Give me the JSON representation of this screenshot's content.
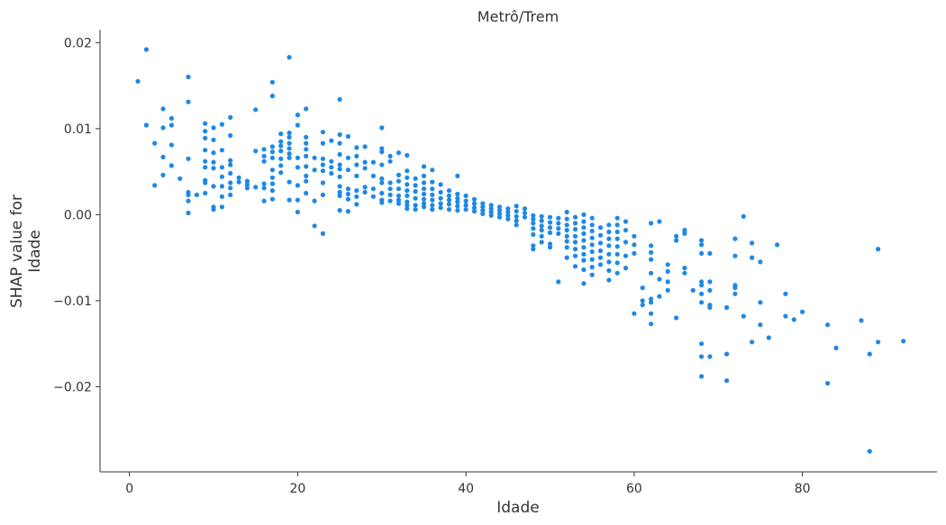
{
  "chart_data": {
    "type": "scatter",
    "title": "Metrô/Trem",
    "xlabel": "Idade",
    "ylabel": [
      "SHAP value for",
      "Idade"
    ],
    "xlim": [
      -3.5,
      96
    ],
    "ylim": [
      -0.0299,
      0.0215
    ],
    "x_ticks": [
      0,
      20,
      40,
      60,
      80
    ],
    "x_tick_labels": [
      "0",
      "20",
      "40",
      "60",
      "80"
    ],
    "y_ticks": [
      0.02,
      0.01,
      0.0,
      -0.01,
      -0.02
    ],
    "y_tick_labels": [
      "0.02",
      "0.01",
      "0.00",
      "−0.01",
      "−0.02"
    ],
    "grid": false,
    "legend": "none",
    "point_color": "#1e88e5",
    "points": [
      [
        1,
        0.0155
      ],
      [
        2,
        0.0192
      ],
      [
        2,
        0.0104
      ],
      [
        3,
        0.0083
      ],
      [
        3,
        0.0034
      ],
      [
        4,
        0.0123
      ],
      [
        4,
        0.0101
      ],
      [
        4,
        0.0067
      ],
      [
        4,
        0.0046
      ],
      [
        5,
        0.0112
      ],
      [
        5,
        0.0104
      ],
      [
        5,
        0.0081
      ],
      [
        5,
        0.0057
      ],
      [
        6,
        0.0042
      ],
      [
        7,
        0.016
      ],
      [
        7,
        0.0131
      ],
      [
        7,
        0.0065
      ],
      [
        7,
        0.0026
      ],
      [
        7,
        0.0023
      ],
      [
        7,
        0.0016
      ],
      [
        7,
        0.0002
      ],
      [
        8,
        0.0023
      ],
      [
        9,
        0.0106
      ],
      [
        9,
        0.0097
      ],
      [
        9,
        0.0089
      ],
      [
        9,
        0.0075
      ],
      [
        9,
        0.0062
      ],
      [
        9,
        0.0055
      ],
      [
        9,
        0.004
      ],
      [
        9,
        0.0037
      ],
      [
        9,
        0.0025
      ],
      [
        10,
        0.0101
      ],
      [
        10,
        0.0087
      ],
      [
        10,
        0.0072
      ],
      [
        10,
        0.0061
      ],
      [
        10,
        0.0054
      ],
      [
        10,
        0.0033
      ],
      [
        10,
        0.0009
      ],
      [
        10,
        0.0006
      ],
      [
        11,
        0.0105
      ],
      [
        11,
        0.0075
      ],
      [
        11,
        0.0055
      ],
      [
        11,
        0.0044
      ],
      [
        11,
        0.0033
      ],
      [
        11,
        0.0021
      ],
      [
        11,
        0.0009
      ],
      [
        12,
        0.0113
      ],
      [
        12,
        0.0092
      ],
      [
        12,
        0.0063
      ],
      [
        12,
        0.0058
      ],
      [
        12,
        0.0048
      ],
      [
        12,
        0.0037
      ],
      [
        12,
        0.0031
      ],
      [
        12,
        0.0023
      ],
      [
        13,
        0.0043
      ],
      [
        13,
        0.0038
      ],
      [
        14,
        0.0039
      ],
      [
        14,
        0.0035
      ],
      [
        14,
        0.0031
      ],
      [
        15,
        0.0122
      ],
      [
        15,
        0.0074
      ],
      [
        15,
        0.0032
      ],
      [
        16,
        0.0076
      ],
      [
        16,
        0.0068
      ],
      [
        16,
        0.0062
      ],
      [
        16,
        0.0036
      ],
      [
        16,
        0.0031
      ],
      [
        16,
        0.0016
      ],
      [
        17,
        0.0154
      ],
      [
        17,
        0.0138
      ],
      [
        17,
        0.0079
      ],
      [
        17,
        0.0073
      ],
      [
        17,
        0.0066
      ],
      [
        17,
        0.0052
      ],
      [
        17,
        0.0043
      ],
      [
        17,
        0.0036
      ],
      [
        17,
        0.0028
      ],
      [
        17,
        0.0018
      ],
      [
        18,
        0.0094
      ],
      [
        18,
        0.0085
      ],
      [
        18,
        0.008
      ],
      [
        18,
        0.0074
      ],
      [
        18,
        0.0065
      ],
      [
        18,
        0.0057
      ],
      [
        18,
        0.0049
      ],
      [
        19,
        0.0183
      ],
      [
        19,
        0.0095
      ],
      [
        19,
        0.009
      ],
      [
        19,
        0.0083
      ],
      [
        19,
        0.0077
      ],
      [
        19,
        0.0071
      ],
      [
        19,
        0.0066
      ],
      [
        19,
        0.0038
      ],
      [
        19,
        0.0017
      ],
      [
        20,
        0.0116
      ],
      [
        20,
        0.0104
      ],
      [
        20,
        0.0066
      ],
      [
        20,
        0.0055
      ],
      [
        20,
        0.0034
      ],
      [
        20,
        0.0017
      ],
      [
        20,
        0.0003
      ],
      [
        21,
        0.0123
      ],
      [
        21,
        0.009
      ],
      [
        21,
        0.0083
      ],
      [
        21,
        0.0076
      ],
      [
        21,
        0.0068
      ],
      [
        21,
        0.0056
      ],
      [
        21,
        0.0045
      ],
      [
        21,
        0.0039
      ],
      [
        21,
        0.0025
      ],
      [
        22,
        0.0066
      ],
      [
        22,
        0.0052
      ],
      [
        22,
        0.0016
      ],
      [
        22,
        -0.0013
      ],
      [
        23,
        0.0096
      ],
      [
        23,
        0.0083
      ],
      [
        23,
        0.0065
      ],
      [
        23,
        0.0058
      ],
      [
        23,
        0.0051
      ],
      [
        23,
        0.0037
      ],
      [
        23,
        0.0023
      ],
      [
        23,
        -0.0022
      ],
      [
        24,
        0.0086
      ],
      [
        24,
        0.0062
      ],
      [
        24,
        0.0055
      ],
      [
        24,
        0.0048
      ],
      [
        25,
        0.0134
      ],
      [
        25,
        0.0093
      ],
      [
        25,
        0.0083
      ],
      [
        25,
        0.007
      ],
      [
        25,
        0.0058
      ],
      [
        25,
        0.0053
      ],
      [
        25,
        0.0044
      ],
      [
        25,
        0.0033
      ],
      [
        25,
        0.0026
      ],
      [
        25,
        0.0022
      ],
      [
        25,
        0.0005
      ],
      [
        26,
        0.0091
      ],
      [
        26,
        0.0066
      ],
      [
        26,
        0.0052
      ],
      [
        26,
        0.003
      ],
      [
        26,
        0.0024
      ],
      [
        26,
        0.0018
      ],
      [
        26,
        0.0004
      ],
      [
        27,
        0.0078
      ],
      [
        27,
        0.0068
      ],
      [
        27,
        0.0058
      ],
      [
        27,
        0.0045
      ],
      [
        27,
        0.0028
      ],
      [
        27,
        0.0021
      ],
      [
        27,
        0.0012
      ],
      [
        28,
        0.0079
      ],
      [
        28,
        0.0061
      ],
      [
        28,
        0.0054
      ],
      [
        28,
        0.0032
      ],
      [
        28,
        0.0026
      ],
      [
        29,
        0.0061
      ],
      [
        29,
        0.0045
      ],
      [
        29,
        0.003
      ],
      [
        29,
        0.0021
      ],
      [
        30,
        0.0101
      ],
      [
        30,
        0.0077
      ],
      [
        30,
        0.0073
      ],
      [
        30,
        0.0058
      ],
      [
        30,
        0.0042
      ],
      [
        30,
        0.0037
      ],
      [
        30,
        0.0025
      ],
      [
        30,
        0.0017
      ],
      [
        30,
        0.0014
      ],
      [
        31,
        0.0068
      ],
      [
        31,
        0.0062
      ],
      [
        31,
        0.0037
      ],
      [
        31,
        0.003
      ],
      [
        31,
        0.0023
      ],
      [
        31,
        0.0016
      ],
      [
        32,
        0.0072
      ],
      [
        32,
        0.0046
      ],
      [
        32,
        0.0039
      ],
      [
        32,
        0.003
      ],
      [
        32,
        0.0022
      ],
      [
        32,
        0.0017
      ],
      [
        32,
        0.0013
      ],
      [
        33,
        0.0069
      ],
      [
        33,
        0.0051
      ],
      [
        33,
        0.0043
      ],
      [
        33,
        0.0035
      ],
      [
        33,
        0.0028
      ],
      [
        33,
        0.0022
      ],
      [
        33,
        0.0015
      ],
      [
        33,
        0.0011
      ],
      [
        33,
        0.0007
      ],
      [
        34,
        0.0042
      ],
      [
        34,
        0.0034
      ],
      [
        34,
        0.0027
      ],
      [
        34,
        0.0019
      ],
      [
        34,
        0.0011
      ],
      [
        34,
        0.0006
      ],
      [
        35,
        0.0056
      ],
      [
        35,
        0.0045
      ],
      [
        35,
        0.0037
      ],
      [
        35,
        0.003
      ],
      [
        35,
        0.0024
      ],
      [
        35,
        0.0018
      ],
      [
        35,
        0.0013
      ],
      [
        35,
        0.0009
      ],
      [
        36,
        0.0052
      ],
      [
        36,
        0.0038
      ],
      [
        36,
        0.003
      ],
      [
        36,
        0.0023
      ],
      [
        36,
        0.0017
      ],
      [
        36,
        0.0011
      ],
      [
        36,
        0.0006
      ],
      [
        37,
        0.0035
      ],
      [
        37,
        0.0026
      ],
      [
        37,
        0.0019
      ],
      [
        37,
        0.0013
      ],
      [
        37,
        0.0008
      ],
      [
        38,
        0.0028
      ],
      [
        38,
        0.0022
      ],
      [
        38,
        0.0017
      ],
      [
        38,
        0.0012
      ],
      [
        38,
        0.0006
      ],
      [
        39,
        0.0045
      ],
      [
        39,
        0.0024
      ],
      [
        39,
        0.0019
      ],
      [
        39,
        0.0015
      ],
      [
        39,
        0.001
      ],
      [
        39,
        0.0005
      ],
      [
        40,
        0.0022
      ],
      [
        40,
        0.0016
      ],
      [
        40,
        0.0011
      ],
      [
        40,
        0.0006
      ],
      [
        41,
        0.0018
      ],
      [
        41,
        0.0013
      ],
      [
        41,
        0.0008
      ],
      [
        41,
        0.0004
      ],
      [
        42,
        0.0013
      ],
      [
        42,
        0.0009
      ],
      [
        42,
        0.0005
      ],
      [
        42,
        0.0001
      ],
      [
        43,
        0.0011
      ],
      [
        43,
        0.0007
      ],
      [
        43,
        0.0003
      ],
      [
        43,
        -0.0001
      ],
      [
        44,
        0.0009
      ],
      [
        44,
        0.0005
      ],
      [
        44,
        0.0001
      ],
      [
        44,
        -0.0003
      ],
      [
        45,
        0.0007
      ],
      [
        45,
        0.0003
      ],
      [
        45,
        -0.0001
      ],
      [
        45,
        -0.0005
      ],
      [
        46,
        0.001
      ],
      [
        46,
        0.0004
      ],
      [
        46,
        -0.0002
      ],
      [
        46,
        -0.0007
      ],
      [
        46,
        -0.0012
      ],
      [
        47,
        0.0007
      ],
      [
        47,
        0.0002
      ],
      [
        47,
        -0.0003
      ],
      [
        48,
        -0.0001
      ],
      [
        48,
        -0.0005
      ],
      [
        48,
        -0.001
      ],
      [
        48,
        -0.0016
      ],
      [
        48,
        -0.0023
      ],
      [
        48,
        -0.0036
      ],
      [
        48,
        -0.004
      ],
      [
        49,
        -0.0002
      ],
      [
        49,
        -0.0007
      ],
      [
        49,
        -0.0013
      ],
      [
        49,
        -0.0018
      ],
      [
        49,
        -0.0025
      ],
      [
        49,
        -0.0032
      ],
      [
        50,
        -0.0003
      ],
      [
        50,
        -0.0009
      ],
      [
        50,
        -0.0015
      ],
      [
        50,
        -0.0021
      ],
      [
        50,
        -0.0034
      ],
      [
        50,
        -0.0038
      ],
      [
        51,
        -0.0004
      ],
      [
        51,
        -0.001
      ],
      [
        51,
        -0.0016
      ],
      [
        51,
        -0.0022
      ],
      [
        51,
        -0.0078
      ],
      [
        52,
        0.0003
      ],
      [
        52,
        -0.0005
      ],
      [
        52,
        -0.0012
      ],
      [
        52,
        -0.0018
      ],
      [
        52,
        -0.0025
      ],
      [
        52,
        -0.0031
      ],
      [
        52,
        -0.0038
      ],
      [
        52,
        -0.005
      ],
      [
        53,
        -0.0003
      ],
      [
        53,
        -0.001
      ],
      [
        53,
        -0.0017
      ],
      [
        53,
        -0.0025
      ],
      [
        53,
        -0.0032
      ],
      [
        53,
        -0.004
      ],
      [
        53,
        -0.0048
      ],
      [
        53,
        -0.006
      ],
      [
        54,
        0.0
      ],
      [
        54,
        -0.0008
      ],
      [
        54,
        -0.0015
      ],
      [
        54,
        -0.0022
      ],
      [
        54,
        -0.003
      ],
      [
        54,
        -0.0038
      ],
      [
        54,
        -0.0046
      ],
      [
        54,
        -0.0053
      ],
      [
        54,
        -0.0064
      ],
      [
        54,
        -0.008
      ],
      [
        55,
        -0.0004
      ],
      [
        55,
        -0.0012
      ],
      [
        55,
        -0.0019
      ],
      [
        55,
        -0.0027
      ],
      [
        55,
        -0.0035
      ],
      [
        55,
        -0.0043
      ],
      [
        55,
        -0.0052
      ],
      [
        55,
        -0.0061
      ],
      [
        55,
        -0.007
      ],
      [
        56,
        -0.0015
      ],
      [
        56,
        -0.0024
      ],
      [
        56,
        -0.0033
      ],
      [
        56,
        -0.0042
      ],
      [
        56,
        -0.005
      ],
      [
        56,
        -0.0058
      ],
      [
        57,
        -0.0012
      ],
      [
        57,
        -0.002
      ],
      [
        57,
        -0.0028
      ],
      [
        57,
        -0.0036
      ],
      [
        57,
        -0.0046
      ],
      [
        57,
        -0.0055
      ],
      [
        57,
        -0.0065
      ],
      [
        57,
        -0.0076
      ],
      [
        58,
        -0.0004
      ],
      [
        58,
        -0.0012
      ],
      [
        58,
        -0.002
      ],
      [
        58,
        -0.0028
      ],
      [
        58,
        -0.0037
      ],
      [
        58,
        -0.0046
      ],
      [
        58,
        -0.0056
      ],
      [
        58,
        -0.0068
      ],
      [
        59,
        -0.0008
      ],
      [
        59,
        -0.0018
      ],
      [
        59,
        -0.0032
      ],
      [
        59,
        -0.0048
      ],
      [
        59,
        -0.0062
      ],
      [
        60,
        -0.0025
      ],
      [
        60,
        -0.0035
      ],
      [
        60,
        -0.0045
      ],
      [
        60,
        -0.0115
      ],
      [
        61,
        -0.0085
      ],
      [
        61,
        -0.01
      ],
      [
        61,
        -0.0105
      ],
      [
        62,
        -0.001
      ],
      [
        62,
        -0.0036
      ],
      [
        62,
        -0.0044
      ],
      [
        62,
        -0.0052
      ],
      [
        62,
        -0.0068
      ],
      [
        62,
        -0.0098
      ],
      [
        62,
        -0.0102
      ],
      [
        62,
        -0.0115
      ],
      [
        62,
        -0.0127
      ],
      [
        63,
        -0.0008
      ],
      [
        63,
        -0.0075
      ],
      [
        63,
        -0.0095
      ],
      [
        64,
        -0.0058
      ],
      [
        64,
        -0.0066
      ],
      [
        64,
        -0.0078
      ],
      [
        64,
        -0.0088
      ],
      [
        65,
        -0.0025
      ],
      [
        65,
        -0.003
      ],
      [
        65,
        -0.012
      ],
      [
        66,
        -0.0018
      ],
      [
        66,
        -0.0022
      ],
      [
        66,
        -0.0062
      ],
      [
        66,
        -0.0068
      ],
      [
        67,
        -0.0088
      ],
      [
        68,
        -0.003
      ],
      [
        68,
        -0.0035
      ],
      [
        68,
        -0.0045
      ],
      [
        68,
        -0.0078
      ],
      [
        68,
        -0.0082
      ],
      [
        68,
        -0.0092
      ],
      [
        68,
        -0.0102
      ],
      [
        68,
        -0.015
      ],
      [
        68,
        -0.0165
      ],
      [
        68,
        -0.0188
      ],
      [
        69,
        -0.0045
      ],
      [
        69,
        -0.0078
      ],
      [
        69,
        -0.0088
      ],
      [
        69,
        -0.0105
      ],
      [
        69,
        -0.0108
      ],
      [
        69,
        -0.0165
      ],
      [
        71,
        -0.0108
      ],
      [
        71,
        -0.0162
      ],
      [
        71,
        -0.0193
      ],
      [
        72,
        -0.0028
      ],
      [
        72,
        -0.0048
      ],
      [
        72,
        -0.0082
      ],
      [
        72,
        -0.0085
      ],
      [
        72,
        -0.0092
      ],
      [
        73,
        -0.0002
      ],
      [
        73,
        -0.0118
      ],
      [
        74,
        -0.0033
      ],
      [
        74,
        -0.005
      ],
      [
        74,
        -0.0148
      ],
      [
        75,
        -0.0055
      ],
      [
        75,
        -0.0102
      ],
      [
        75,
        -0.0128
      ],
      [
        76,
        -0.0143
      ],
      [
        77,
        -0.0035
      ],
      [
        78,
        -0.0092
      ],
      [
        78,
        -0.0118
      ],
      [
        79,
        -0.0122
      ],
      [
        80,
        -0.0113
      ],
      [
        83,
        -0.0128
      ],
      [
        83,
        -0.0196
      ],
      [
        84,
        -0.0155
      ],
      [
        87,
        -0.0123
      ],
      [
        88,
        -0.0162
      ],
      [
        88,
        -0.0275
      ],
      [
        89,
        -0.004
      ],
      [
        89,
        -0.0148
      ],
      [
        92,
        -0.0147
      ]
    ]
  }
}
